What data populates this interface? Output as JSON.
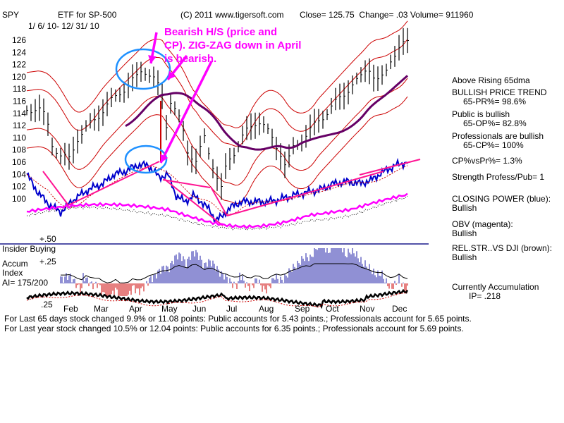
{
  "header": {
    "symbol": "SPY",
    "name": "ETF for SP-500",
    "copyright": "(C) 2011 www.tigersoft.com",
    "close_label": "Close=",
    "close_value": "125.75",
    "change_label": "Change=",
    "change_value": ".03",
    "volume_label": "Volume=",
    "volume_value": "911960",
    "date_range": "1/ 6/ 10- 12/ 31/ 10"
  },
  "annotation": {
    "lines": [
      "Bearish H/S (price and",
      "CP). ZIG-ZAG down in April",
      "is bearish."
    ]
  },
  "lower_panel": {
    "insider_label": "Insider Buying",
    "accum_label_1": "Accum",
    "accum_label_2": "Index",
    "ai_label": "AI= 175/200",
    "level_top": "+.50",
    "level_mid": "+.25",
    "level_low": ".25"
  },
  "footer": {
    "line1": "For Last 65 days stock changed  9.9% or  11.08 points:  Public accounts for  5.43 points.;  Professionals account for  5.65 points.",
    "line2": "For Last year stock changed  10.5% or  12.04 points:  Public accounts for  6.35 points.;  Professionals account for  5.69 points."
  },
  "sidebar": {
    "above_rising": "Above Rising 65dma",
    "trend_title": "BULLISH PRICE TREND",
    "trend_value": "65-PR%= 98.6%",
    "public_title": "Public is bullish",
    "public_value": "65-OP%= 82.8%",
    "pros_title": "Professionals are bullish",
    "pros_value": "65-CP%= 100%",
    "cpvspr": "CP%vsPr%=  1.3%",
    "strength": "Strength Profess/Pub= 1",
    "cp_title": "CLOSING POWER (blue):",
    "cp_value": "Bullish",
    "obv_title": "OBV (magenta):",
    "obv_value": "Bullish",
    "relstr_title": "REL.STR..VS DJI (brown):",
    "relstr_value": "Bullish",
    "accum_title": "Currently Accumulation",
    "accum_value": "IP= .218"
  },
  "colors": {
    "price_bars": "#000000",
    "bands": "#cc0000",
    "ma65": "#660066",
    "closing_power": "#0000cc",
    "obv": "#ff00ff",
    "relstr": "#8b4513",
    "trendline": "#ff1493",
    "annotation": "#ff00ff",
    "circles": "#1e90ff"
  },
  "chart_data": {
    "type": "line",
    "title": "ETF for SP-500",
    "x_axis_months": [
      "Feb",
      "Mar",
      "Apr",
      "May",
      "Jun",
      "Jul",
      "Aug",
      "Sep",
      "Oct",
      "Nov",
      "Dec"
    ],
    "y_ticks": [
      100,
      102,
      104,
      106,
      108,
      110,
      112,
      114,
      116,
      118,
      120,
      122,
      124,
      126
    ],
    "ylim": [
      98,
      128
    ],
    "series": [
      {
        "name": "Price",
        "points": [
          [
            0,
            114.5
          ],
          [
            8,
            115
          ],
          [
            14,
            113
          ],
          [
            18,
            109
          ],
          [
            24,
            107
          ],
          [
            30,
            106.5
          ],
          [
            36,
            110
          ],
          [
            44,
            112
          ],
          [
            52,
            114
          ],
          [
            60,
            116
          ],
          [
            66,
            117.5
          ],
          [
            72,
            118.5
          ],
          [
            78,
            120
          ],
          [
            82,
            121.5
          ],
          [
            88,
            120
          ],
          [
            92,
            119
          ],
          [
            96,
            117
          ],
          [
            98,
            111
          ],
          [
            102,
            116
          ],
          [
            106,
            114
          ],
          [
            110,
            112
          ],
          [
            114,
            108
          ],
          [
            120,
            106
          ],
          [
            126,
            110
          ],
          [
            130,
            107
          ],
          [
            134,
            104
          ],
          [
            138,
            101.5
          ],
          [
            142,
            106
          ],
          [
            148,
            108
          ],
          [
            154,
            110.5
          ],
          [
            160,
            112
          ],
          [
            164,
            113
          ],
          [
            168,
            112
          ],
          [
            172,
            110.5
          ],
          [
            176,
            109
          ],
          [
            180,
            107.5
          ],
          [
            184,
            105
          ],
          [
            188,
            108
          ],
          [
            194,
            109.5
          ],
          [
            200,
            111
          ],
          [
            206,
            112.5
          ],
          [
            212,
            114
          ],
          [
            218,
            115.5
          ],
          [
            224,
            117
          ],
          [
            230,
            118.5
          ],
          [
            236,
            119.5
          ],
          [
            242,
            122
          ],
          [
            246,
            120
          ],
          [
            250,
            119
          ],
          [
            254,
            120.5
          ],
          [
            258,
            123
          ],
          [
            262,
            124
          ],
          [
            266,
            125
          ],
          [
            270,
            125.75
          ]
        ]
      },
      {
        "name": "CLOSING POWER (blue)",
        "points": [
          [
            0,
            104
          ],
          [
            8,
            101
          ],
          [
            16,
            99
          ],
          [
            24,
            97.8
          ],
          [
            34,
            100
          ],
          [
            44,
            101.5
          ],
          [
            54,
            102.5
          ],
          [
            62,
            104
          ],
          [
            70,
            104.5
          ],
          [
            78,
            105.5
          ],
          [
            86,
            105.5
          ],
          [
            94,
            103.5
          ],
          [
            100,
            104
          ],
          [
            106,
            100.5
          ],
          [
            112,
            99.5
          ],
          [
            118,
            100.5
          ],
          [
            124,
            99.5
          ],
          [
            130,
            98
          ],
          [
            134,
            96.5
          ],
          [
            138,
            97
          ],
          [
            144,
            98.5
          ],
          [
            152,
            99.5
          ],
          [
            160,
            99.5
          ],
          [
            170,
            99.5
          ],
          [
            178,
            99.8
          ],
          [
            188,
            100.5
          ],
          [
            198,
            101
          ],
          [
            208,
            101.5
          ],
          [
            218,
            102.5
          ],
          [
            228,
            102.8
          ],
          [
            236,
            102.5
          ],
          [
            244,
            103
          ],
          [
            250,
            104
          ],
          [
            256,
            104.8
          ],
          [
            262,
            105.5
          ],
          [
            270,
            106
          ]
        ]
      }
    ]
  }
}
